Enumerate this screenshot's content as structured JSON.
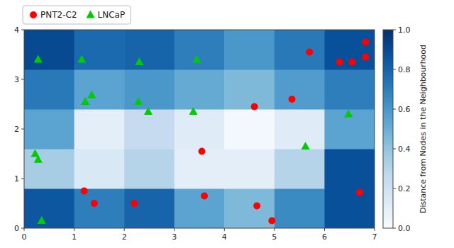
{
  "chart_data": {
    "type": "heatmap",
    "colorbar_label": "Distance from Nodes in the Neighbourhood",
    "color": "Blues",
    "xlim": [
      0,
      7
    ],
    "ylim": [
      0,
      4
    ],
    "xticks": [
      0,
      1,
      2,
      3,
      4,
      5,
      6,
      7
    ],
    "yticks": [
      0,
      1,
      2,
      3,
      4
    ],
    "cells": [
      [
        0.85,
        0.7,
        0.8,
        0.55,
        0.45,
        0.65,
        0.88
      ],
      [
        0.35,
        0.15,
        0.3,
        0.1,
        0.1,
        0.3,
        0.88
      ],
      [
        0.55,
        0.1,
        0.25,
        0.12,
        0.02,
        0.12,
        0.55
      ],
      [
        0.72,
        0.55,
        0.6,
        0.52,
        0.45,
        0.58,
        0.7
      ],
      [
        0.9,
        0.78,
        0.8,
        0.7,
        0.6,
        0.72,
        0.88
      ]
    ],
    "clim": [
      0.0,
      1.0
    ],
    "cticks": [
      {
        "value": 0,
        "label": "0.0"
      },
      0.2,
      0.4,
      0.6,
      0.8,
      {
        "value": 1,
        "label": "1.0"
      }
    ],
    "legend": "top-left",
    "series": [
      {
        "name": "PNT2-C2",
        "type": "scatter",
        "color": "#ff0000",
        "marker": "circle",
        "x": [
          1.2,
          1.4,
          2.2,
          3.6,
          4.65,
          4.95,
          6.7,
          3.55,
          4.6,
          5.35,
          5.7,
          6.3,
          6.55,
          6.82,
          6.82
        ],
        "values": [
          0.75,
          0.5,
          0.5,
          0.65,
          0.45,
          0.15,
          0.72,
          1.55,
          2.45,
          2.6,
          3.55,
          3.35,
          3.35,
          3.75,
          3.45
        ]
      },
      {
        "name": "LNCaP",
        "type": "scatter",
        "color": "#00cc00",
        "marker": "triangle",
        "x": [
          0.35,
          0.28,
          0.22,
          0.28,
          1.15,
          2.3,
          3.45,
          1.22,
          1.35,
          2.28,
          2.48,
          3.38,
          6.48,
          5.62
        ],
        "values": [
          0.15,
          1.38,
          1.5,
          3.4,
          3.4,
          3.35,
          3.4,
          2.55,
          2.68,
          2.55,
          2.35,
          2.35,
          2.3,
          1.65
        ]
      }
    ]
  }
}
